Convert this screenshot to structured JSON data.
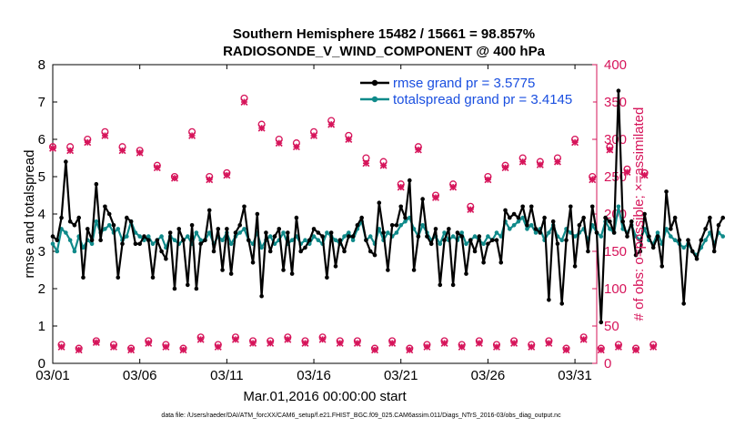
{
  "chart_data": {
    "type": "line",
    "title_line1": "Southern Hemisphere 15482 / 15661 = 98.857%",
    "title_line2": "RADIOSONDE_V_WIND_COMPONENT @ 400 hPa",
    "xlabel": "Mar.01,2016 00:00:00 start",
    "ylabel": "rmse and totalspread",
    "ylabel_right": "# of obs: o=possible; ×=assimilated",
    "xlim": [
      0,
      31.25
    ],
    "ylim": [
      0,
      8
    ],
    "ylim_right": [
      0,
      400
    ],
    "x_tick_values": [
      0,
      5,
      10,
      15,
      20,
      25,
      30
    ],
    "x_tick_labels": [
      "03/01",
      "03/06",
      "03/11",
      "03/16",
      "03/21",
      "03/26",
      "03/31"
    ],
    "y_ticks": [
      "0",
      "1",
      "2",
      "3",
      "4",
      "5",
      "6",
      "7",
      "8"
    ],
    "y_ticks_right": [
      "0",
      "50",
      "100",
      "150",
      "200",
      "250",
      "300",
      "350",
      "400"
    ],
    "footer": "data file: /Users/raeder/DAI/ATM_forcXX/CAM6_setup/f.e21.FHIST_BGC.f09_025.CAM6assim.011/Diags_NTrS_2016-03/obs_diag_output.nc",
    "series": [
      {
        "name": "rmse",
        "legend_label": "rmse grand pr = 3.5775",
        "color": "#000000",
        "x_step_days": 0.25,
        "values": [
          3.4,
          3.3,
          3.9,
          5.4,
          3.8,
          3.7,
          3.9,
          2.3,
          3.6,
          3.3,
          4.8,
          3.3,
          4.2,
          4.0,
          3.7,
          2.3,
          3.2,
          3.9,
          3.8,
          3.2,
          3.2,
          3.4,
          3.3,
          2.3,
          3.3,
          3.0,
          2.8,
          3.5,
          2.0,
          3.6,
          3.3,
          2.1,
          3.7,
          2.0,
          3.2,
          3.3,
          4.1,
          3.0,
          3.6,
          2.5,
          3.6,
          2.4,
          3.5,
          3.7,
          4.2,
          3.3,
          2.7,
          4.0,
          1.8,
          3.5,
          3.0,
          3.4,
          3.6,
          2.5,
          3.5,
          2.4,
          3.9,
          3.0,
          3.1,
          3.3,
          3.6,
          3.5,
          3.4,
          2.3,
          3.5,
          2.6,
          3.3,
          3.0,
          3.4,
          3.4,
          3.7,
          3.9,
          3.3,
          3.0,
          2.9,
          4.3,
          3.5,
          2.5,
          3.7,
          3.7,
          4.2,
          3.9,
          4.9,
          2.5,
          3.4,
          4.4,
          3.4,
          3.2,
          3.6,
          2.1,
          3.3,
          3.6,
          2.1,
          3.5,
          3.4,
          2.4,
          3.3,
          3.0,
          3.4,
          2.7,
          3.2,
          3.3,
          3.3,
          2.7,
          4.1,
          3.9,
          4.0,
          3.9,
          4.2,
          3.7,
          4.2,
          3.6,
          3.5,
          3.9,
          1.7,
          3.8,
          3.2,
          1.6,
          3.3,
          4.2,
          2.6,
          3.7,
          3.9,
          3.0,
          4.2,
          3.5,
          1.1,
          3.9,
          3.8,
          3.5,
          7.3,
          3.8,
          3.4,
          3.8,
          2.9,
          3.0,
          4.0,
          3.4,
          3.1,
          3.4,
          2.6,
          4.6,
          3.6,
          3.9,
          3.3,
          1.6,
          3.3,
          3.0,
          2.8,
          3.3,
          3.6,
          3.9,
          3.0,
          3.7,
          3.9
        ]
      },
      {
        "name": "totalspread",
        "legend_label": "totalspread grand pr = 3.4145",
        "color": "#0f8a8a",
        "x_step_days": 0.25,
        "values": [
          3.2,
          3.0,
          3.6,
          3.5,
          3.3,
          3.0,
          3.4,
          3.1,
          3.3,
          3.2,
          3.8,
          3.5,
          3.6,
          3.7,
          3.5,
          3.6,
          3.3,
          3.4,
          3.8,
          3.5,
          3.4,
          3.3,
          3.4,
          3.2,
          3.3,
          3.4,
          3.1,
          3.4,
          3.3,
          3.2,
          3.3,
          3.4,
          3.2,
          3.5,
          3.3,
          3.3,
          3.5,
          3.2,
          3.4,
          3.3,
          3.5,
          3.2,
          3.4,
          3.5,
          3.6,
          3.3,
          3.2,
          3.5,
          3.1,
          3.3,
          3.4,
          3.2,
          3.3,
          3.5,
          3.2,
          3.3,
          3.4,
          3.2,
          3.3,
          3.2,
          3.4,
          3.3,
          3.2,
          3.5,
          3.4,
          3.3,
          3.2,
          3.4,
          3.5,
          3.3,
          3.6,
          3.8,
          3.3,
          3.4,
          3.2,
          3.6,
          3.3,
          3.5,
          3.4,
          3.5,
          3.7,
          3.8,
          3.9,
          3.6,
          3.4,
          3.7,
          3.5,
          3.3,
          3.4,
          3.2,
          3.5,
          3.3,
          3.4,
          3.3,
          3.5,
          3.2,
          3.3,
          3.4,
          3.3,
          3.2,
          3.4,
          3.3,
          3.5,
          3.4,
          3.8,
          3.6,
          3.7,
          3.8,
          3.9,
          3.6,
          3.7,
          3.5,
          3.6,
          3.3,
          3.5,
          3.7,
          3.4,
          3.3,
          3.6,
          3.5,
          3.4,
          3.5,
          3.6,
          3.3,
          3.7,
          3.5,
          3.4,
          3.8,
          3.6,
          3.5,
          4.2,
          3.6,
          3.5,
          3.7,
          3.4,
          3.3,
          3.6,
          3.3,
          3.2,
          3.5,
          3.2,
          3.6,
          3.4,
          3.3,
          3.2,
          3.1,
          3.2,
          3.0,
          2.9,
          3.1,
          3.3,
          3.5,
          3.2,
          3.5,
          3.4
        ]
      },
      {
        "name": "obs_possible",
        "marker": "o",
        "color": "#d6145a",
        "axis": "right",
        "x_start_day": 0,
        "x_step_days": 0.5,
        "values": [
          290,
          25,
          290,
          20,
          300,
          30,
          310,
          25,
          290,
          20,
          285,
          30,
          265,
          25,
          250,
          20,
          310,
          35,
          250,
          25,
          255,
          35,
          355,
          30,
          320,
          30,
          300,
          35,
          295,
          30,
          310,
          35,
          325,
          30,
          305,
          30,
          275,
          20,
          270,
          30,
          240,
          20,
          290,
          25,
          225,
          30,
          240,
          25,
          210,
          30,
          250,
          25,
          265,
          30,
          275,
          25,
          270,
          30,
          275,
          20,
          300,
          35,
          250,
          20,
          290,
          25,
          260,
          20,
          255,
          25
        ]
      },
      {
        "name": "obs_assimilated",
        "marker": "x",
        "color": "#d6145a",
        "axis": "right",
        "x_start_day": 0,
        "x_step_days": 0.5,
        "values": [
          288,
          22,
          285,
          18,
          296,
          28,
          305,
          22,
          285,
          18,
          282,
          27,
          262,
          22,
          248,
          18,
          305,
          32,
          246,
          22,
          252,
          32,
          350,
          27,
          315,
          27,
          295,
          32,
          290,
          27,
          305,
          32,
          320,
          27,
          300,
          27,
          268,
          18,
          265,
          27,
          236,
          18,
          286,
          22,
          222,
          27,
          236,
          22,
          206,
          27,
          246,
          22,
          262,
          27,
          270,
          22,
          266,
          27,
          270,
          18,
          296,
          32,
          246,
          18,
          286,
          22,
          256,
          18,
          252,
          22
        ]
      }
    ]
  }
}
